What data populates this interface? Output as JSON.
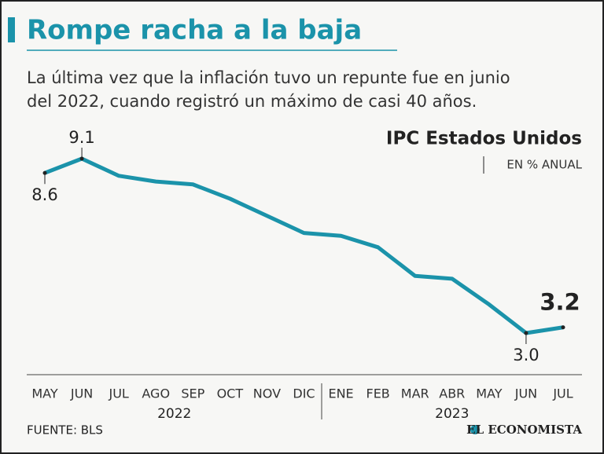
{
  "header": {
    "title": "Rompe racha a la baja",
    "subtitle": [
      "La última vez que la inflación tuvo un repunte fue en junio",
      "del 2022, cuando registró un máximo de casi 40 años."
    ]
  },
  "chart_data": {
    "type": "line",
    "title": "IPC Estados Unidos",
    "subtitle": "EN % ANUAL",
    "groups": [
      {
        "label": "2022",
        "months": [
          "MAY",
          "JUN",
          "JUL",
          "AGO",
          "SEP",
          "OCT",
          "NOV",
          "DIC"
        ]
      },
      {
        "label": "2023",
        "months": [
          "ENE",
          "FEB",
          "MAR",
          "ABR",
          "MAY",
          "JUN",
          "JUL"
        ]
      }
    ],
    "values": [
      8.6,
      9.1,
      8.5,
      8.3,
      8.2,
      7.7,
      7.1,
      6.5,
      6.4,
      6.0,
      5.0,
      4.9,
      4.0,
      3.0,
      3.2
    ],
    "value_labels": [
      "8.6",
      "9.1",
      null,
      null,
      null,
      null,
      null,
      null,
      null,
      null,
      null,
      null,
      null,
      "3.0",
      "3.2"
    ],
    "color": "#1b93aa"
  },
  "footer": {
    "source": "FUENTE: BLS",
    "brand": "EL ECONOMISTA"
  }
}
